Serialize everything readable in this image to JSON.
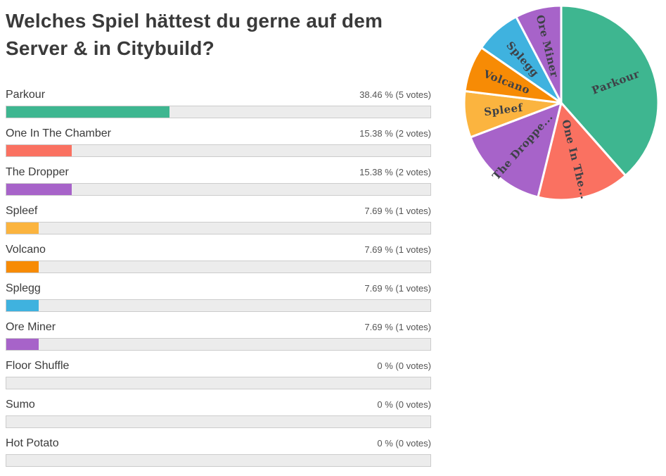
{
  "page": {
    "title": "Welches Spiel hättest du gerne auf dem Server & in Citybuild?"
  },
  "chart_data": [
    {
      "type": "bar",
      "orientation": "horizontal",
      "title": "Welches Spiel hättest du gerne auf dem Server & in Citybuild?",
      "categories": [
        "Parkour",
        "One In The Chamber",
        "The Dropper",
        "Spleef",
        "Volcano",
        "Splegg",
        "Ore Miner",
        "Floor Shuffle",
        "Sumo",
        "Hot Potato"
      ],
      "values": [
        38.46,
        15.38,
        15.38,
        7.69,
        7.69,
        7.69,
        7.69,
        0,
        0,
        0
      ],
      "votes": [
        5,
        2,
        2,
        1,
        1,
        1,
        1,
        0,
        0,
        0
      ],
      "value_labels": [
        "38.46 % (5 votes)",
        "15.38 % (2 votes)",
        "15.38 % (2 votes)",
        "7.69 % (1 votes)",
        "7.69 % (1 votes)",
        "7.69 % (1 votes)",
        "7.69 % (1 votes)",
        "0 % (0 votes)",
        "0 % (0 votes)",
        "0 % (0 votes)"
      ],
      "bar_colors": [
        "#3EB690",
        "#FA7161",
        "#A763C9",
        "#FBB43F",
        "#F78B05",
        "#3FB2DF",
        "#A763C9",
        "#ECECEC",
        "#ECECEC",
        "#ECECEC"
      ],
      "track_color": "#ECECEC",
      "track_border_color": "#CCCCCC",
      "xlim": [
        0,
        100
      ],
      "grid": false,
      "legend_position": "none"
    },
    {
      "type": "pie",
      "start_angle_deg": 0,
      "direction": "clockwise",
      "labels_inside": true,
      "label_color": "#3E4147",
      "slices": [
        {
          "label": "Parkour",
          "display_label": "Parkour",
          "value": 38.46,
          "color": "#3EB690"
        },
        {
          "label": "One In The Chamber",
          "display_label": "One In The...",
          "value": 15.38,
          "color": "#FA7161"
        },
        {
          "label": "The Dropper",
          "display_label": "The Droppe...",
          "value": 15.38,
          "color": "#A763C9"
        },
        {
          "label": "Spleef",
          "display_label": "Spleef",
          "value": 7.69,
          "color": "#FBB43F"
        },
        {
          "label": "Volcano",
          "display_label": "Volcano",
          "value": 7.69,
          "color": "#F78B05"
        },
        {
          "label": "Splegg",
          "display_label": "Splegg",
          "value": 7.69,
          "color": "#3FB2DF"
        },
        {
          "label": "Ore Miner",
          "display_label": "Ore Miner",
          "value": 7.69,
          "color": "#A763C9"
        }
      ]
    }
  ]
}
